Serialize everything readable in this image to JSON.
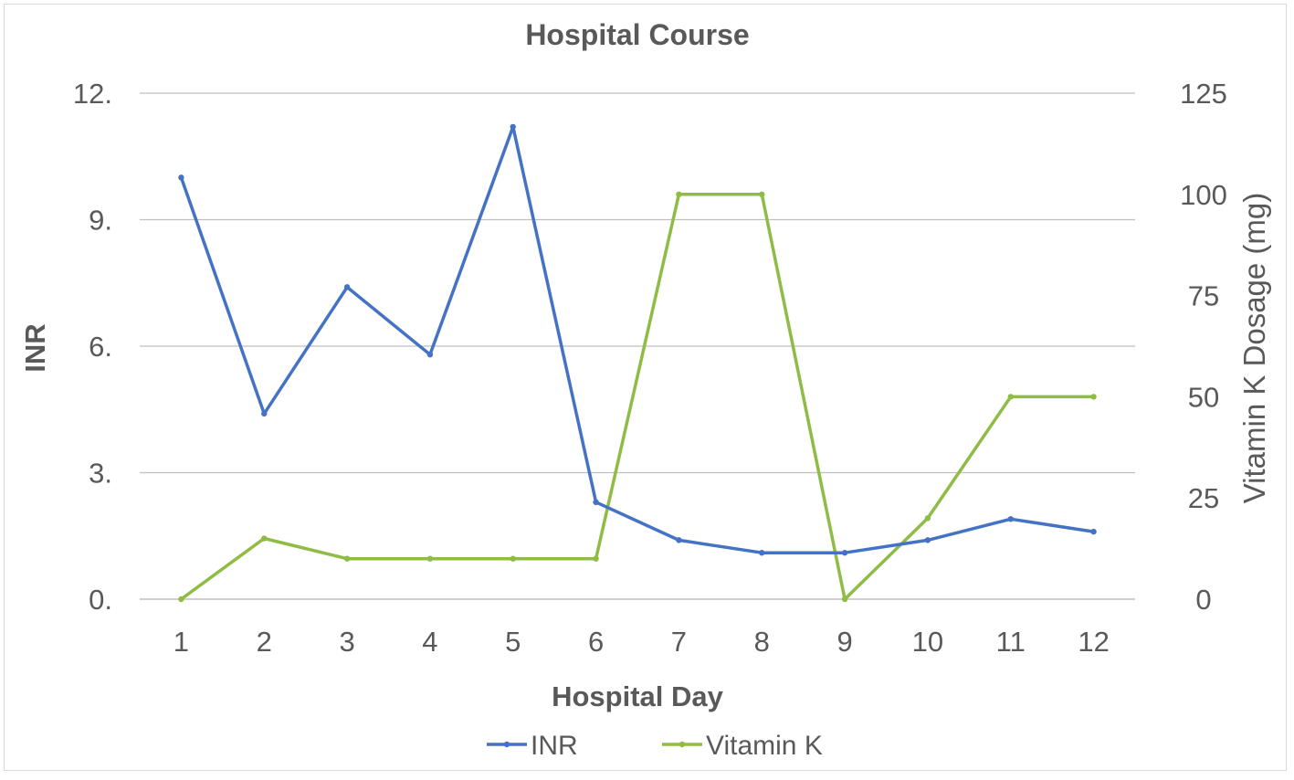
{
  "chart_data": {
    "type": "line",
    "title": "Hospital Course",
    "xlabel": "Hospital Day",
    "ylabel": "INR",
    "y2label": "Vitamin K Dosage (mg)",
    "categories": [
      "1",
      "2",
      "3",
      "4",
      "5",
      "6",
      "7",
      "8",
      "9",
      "10",
      "11",
      "12"
    ],
    "ylim": [
      0,
      12
    ],
    "y_ticks": [
      "0.",
      "3.",
      "6.",
      "9.",
      "12."
    ],
    "y_tick_values": [
      0,
      3,
      6,
      9,
      12
    ],
    "y2lim": [
      0,
      125
    ],
    "y2_ticks": [
      "0",
      "25",
      "50",
      "75",
      "100",
      "125"
    ],
    "y2_tick_values": [
      0,
      25,
      50,
      75,
      100,
      125
    ],
    "grid": true,
    "legend_position": "bottom",
    "series": [
      {
        "name": "INR",
        "axis": "left",
        "color": "#4472c4",
        "values": [
          10.0,
          4.4,
          7.4,
          5.8,
          11.2,
          2.3,
          1.4,
          1.1,
          1.1,
          1.4,
          1.9,
          1.6
        ]
      },
      {
        "name": "Vitamin K",
        "axis": "right",
        "color": "#8fbc45",
        "values": [
          0,
          15,
          10,
          10,
          10,
          10,
          100,
          100,
          0,
          20,
          50,
          50
        ]
      }
    ]
  }
}
